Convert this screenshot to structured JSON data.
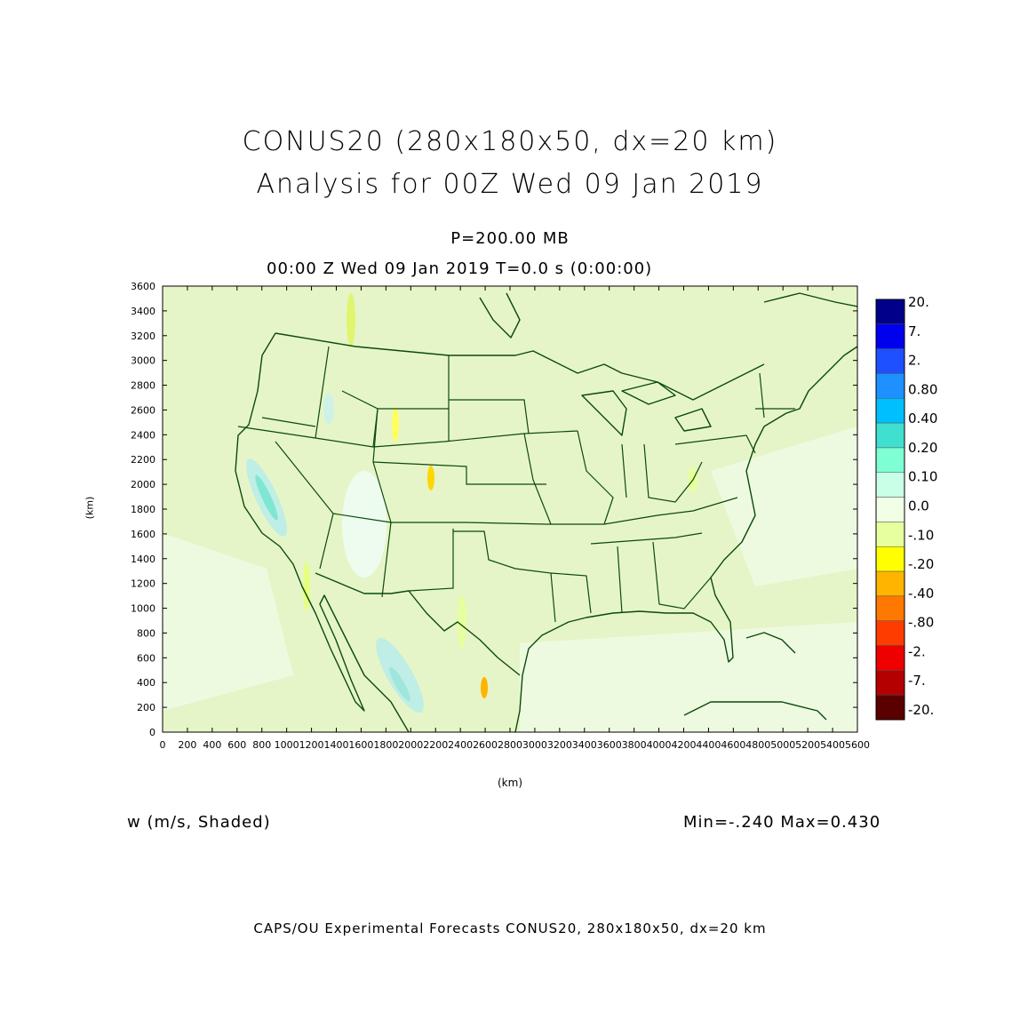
{
  "title_line1": "CONUS20 (280x180x50, dx=20 km)",
  "title_line2": "Analysis for 00Z Wed 09 Jan 2019",
  "subtitle_line1": "P=200.00 MB",
  "subtitle_line2": "00:00 Z Wed 09 Jan 2019    T=0.0 s (0:00:00)",
  "x_axis_label": "(km)",
  "y_axis_label": "(km)",
  "x_ticks": [
    "0",
    "200",
    "400",
    "600",
    "800",
    "1000",
    "1200",
    "1400",
    "1600",
    "1800",
    "2000",
    "2200",
    "2400",
    "2600",
    "2800",
    "3000",
    "3200",
    "3400",
    "3600",
    "3800",
    "4000",
    "4200",
    "4400",
    "4600",
    "4800",
    "5000",
    "5200",
    "5400",
    "5600"
  ],
  "y_ticks": [
    "0",
    "200",
    "400",
    "600",
    "800",
    "1000",
    "1200",
    "1400",
    "1600",
    "1800",
    "2000",
    "2200",
    "2400",
    "2600",
    "2800",
    "3000",
    "3200",
    "3400",
    "3600"
  ],
  "colorbar": {
    "labels": [
      "20.",
      "7.",
      "2.",
      "0.80",
      "0.40",
      "0.20",
      "0.10",
      "0.0",
      "-.10",
      "-.20",
      "-.40",
      "-.80",
      "-2.",
      "-7.",
      "-20."
    ],
    "colors": [
      "#00008b",
      "#0000ee",
      "#1e50ff",
      "#1e90ff",
      "#00bfff",
      "#40e0d0",
      "#7fffd4",
      "#c8ffe6",
      "#f0ffe6",
      "#e6ff9f",
      "#ffff00",
      "#ffb400",
      "#ff7800",
      "#ff3c00",
      "#ee0000",
      "#b40000",
      "#5a0000"
    ]
  },
  "field_label": "w (m/s, Shaded)",
  "min_max": "Min=-.240  Max=0.430",
  "footer": "CAPS/OU Experimental Forecasts  CONUS20, 280x180x50, dx=20 km",
  "colors": {
    "map_background": "#e6f5c8",
    "state_lines": "#0a4a0a"
  }
}
